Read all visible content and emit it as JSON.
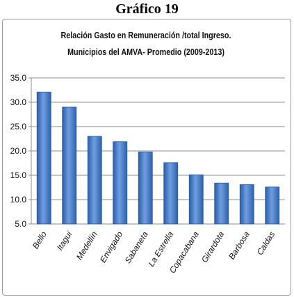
{
  "heading": "Gráfico 19",
  "chart_data": {
    "type": "bar",
    "title": "Relación  Gasto en  Remuneración /total Ingreso.",
    "subtitle": "Municipios  del AMVA-   Promedio (2009-2013)",
    "categories": [
      "Bello",
      "Itagui",
      "Medellín",
      "Envigado",
      "Sabaneta",
      "La Estrella",
      "Copacabana",
      "Girardota",
      "Barbosa",
      "Caldas"
    ],
    "values": [
      32.1,
      29.0,
      23.0,
      21.9,
      19.8,
      17.6,
      15.1,
      13.4,
      13.1,
      12.6
    ],
    "ylim": [
      5.0,
      35.0
    ],
    "yticks": [
      "5.0",
      "10.0",
      "15.0",
      "20.0",
      "25.0",
      "30.0",
      "35.0"
    ],
    "xlabel": "",
    "ylabel": "",
    "grid": true,
    "bar_color": "#3f78c8",
    "legend": "none"
  }
}
